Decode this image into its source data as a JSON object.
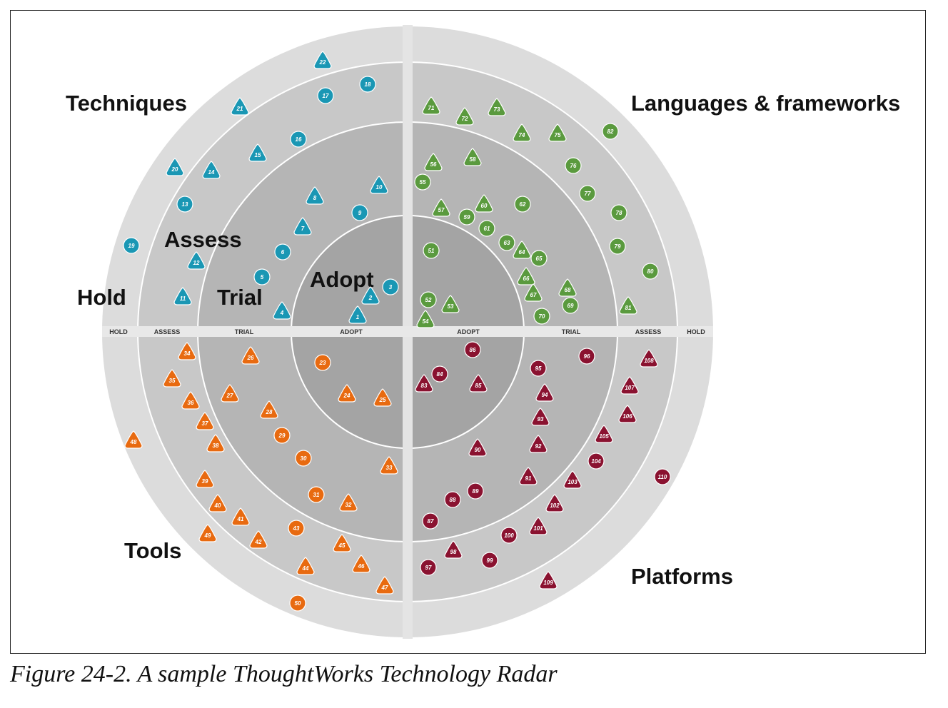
{
  "caption": "Figure 24-2. A sample ThoughtWorks Technology Radar",
  "quadrants": {
    "techniques": "Techniques",
    "languages": "Languages & frameworks",
    "tools": "Tools",
    "platforms": "Platforms"
  },
  "ring_labels": {
    "hold": "Hold",
    "assess": "Assess",
    "trial": "Trial",
    "adopt": "Adopt"
  },
  "axis_labels": [
    "HOLD",
    "ASSESS",
    "TRIAL",
    "ADOPT",
    "ADOPT",
    "TRIAL",
    "ASSESS",
    "HOLD"
  ],
  "colors": {
    "techniques": "#1a97b4",
    "languages": "#5a9a3e",
    "tools": "#e86a10",
    "platforms": "#8a1230",
    "ring_hold": "#dcdcdc",
    "ring_assess": "#c8c8c8",
    "ring_trial": "#b5b5b5",
    "ring_adopt": "#a4a4a4"
  },
  "blips": [
    {
      "n": "1",
      "q": "techniques",
      "shape": "triangle"
    },
    {
      "n": "2",
      "q": "techniques",
      "shape": "triangle"
    },
    {
      "n": "3",
      "q": "techniques",
      "shape": "circle"
    },
    {
      "n": "4",
      "q": "techniques",
      "shape": "triangle"
    },
    {
      "n": "5",
      "q": "techniques",
      "shape": "circle"
    },
    {
      "n": "6",
      "q": "techniques",
      "shape": "circle"
    },
    {
      "n": "7",
      "q": "techniques",
      "shape": "triangle"
    },
    {
      "n": "8",
      "q": "techniques",
      "shape": "triangle"
    },
    {
      "n": "9",
      "q": "techniques",
      "shape": "circle"
    },
    {
      "n": "10",
      "q": "techniques",
      "shape": "triangle"
    },
    {
      "n": "11",
      "q": "techniques",
      "shape": "triangle"
    },
    {
      "n": "12",
      "q": "techniques",
      "shape": "triangle"
    },
    {
      "n": "13",
      "q": "techniques",
      "shape": "circle"
    },
    {
      "n": "14",
      "q": "techniques",
      "shape": "triangle"
    },
    {
      "n": "15",
      "q": "techniques",
      "shape": "triangle"
    },
    {
      "n": "16",
      "q": "techniques",
      "shape": "circle"
    },
    {
      "n": "17",
      "q": "techniques",
      "shape": "circle"
    },
    {
      "n": "18",
      "q": "techniques",
      "shape": "circle"
    },
    {
      "n": "19",
      "q": "techniques",
      "shape": "circle"
    },
    {
      "n": "20",
      "q": "techniques",
      "shape": "triangle"
    },
    {
      "n": "21",
      "q": "techniques",
      "shape": "triangle"
    },
    {
      "n": "22",
      "q": "techniques",
      "shape": "triangle"
    },
    {
      "n": "51",
      "q": "languages",
      "shape": "circle"
    },
    {
      "n": "52",
      "q": "languages",
      "shape": "circle"
    },
    {
      "n": "53",
      "q": "languages",
      "shape": "triangle"
    },
    {
      "n": "54",
      "q": "languages",
      "shape": "triangle"
    },
    {
      "n": "55",
      "q": "languages",
      "shape": "circle"
    },
    {
      "n": "56",
      "q": "languages",
      "shape": "triangle"
    },
    {
      "n": "57",
      "q": "languages",
      "shape": "triangle"
    },
    {
      "n": "58",
      "q": "languages",
      "shape": "triangle"
    },
    {
      "n": "59",
      "q": "languages",
      "shape": "circle"
    },
    {
      "n": "60",
      "q": "languages",
      "shape": "triangle"
    },
    {
      "n": "61",
      "q": "languages",
      "shape": "circle"
    },
    {
      "n": "62",
      "q": "languages",
      "shape": "circle"
    },
    {
      "n": "63",
      "q": "languages",
      "shape": "circle"
    },
    {
      "n": "64",
      "q": "languages",
      "shape": "triangle"
    },
    {
      "n": "65",
      "q": "languages",
      "shape": "circle"
    },
    {
      "n": "66",
      "q": "languages",
      "shape": "triangle"
    },
    {
      "n": "67",
      "q": "languages",
      "shape": "triangle"
    },
    {
      "n": "68",
      "q": "languages",
      "shape": "triangle"
    },
    {
      "n": "69",
      "q": "languages",
      "shape": "circle"
    },
    {
      "n": "70",
      "q": "languages",
      "shape": "circle"
    },
    {
      "n": "71",
      "q": "languages",
      "shape": "triangle"
    },
    {
      "n": "72",
      "q": "languages",
      "shape": "triangle"
    },
    {
      "n": "73",
      "q": "languages",
      "shape": "triangle"
    },
    {
      "n": "74",
      "q": "languages",
      "shape": "triangle"
    },
    {
      "n": "75",
      "q": "languages",
      "shape": "triangle"
    },
    {
      "n": "76",
      "q": "languages",
      "shape": "circle"
    },
    {
      "n": "77",
      "q": "languages",
      "shape": "circle"
    },
    {
      "n": "78",
      "q": "languages",
      "shape": "circle"
    },
    {
      "n": "79",
      "q": "languages",
      "shape": "circle"
    },
    {
      "n": "80",
      "q": "languages",
      "shape": "circle"
    },
    {
      "n": "81",
      "q": "languages",
      "shape": "triangle"
    },
    {
      "n": "82",
      "q": "languages",
      "shape": "circle"
    },
    {
      "n": "23",
      "q": "tools",
      "shape": "circle"
    },
    {
      "n": "24",
      "q": "tools",
      "shape": "triangle"
    },
    {
      "n": "25",
      "q": "tools",
      "shape": "triangle"
    },
    {
      "n": "26",
      "q": "tools",
      "shape": "triangle"
    },
    {
      "n": "27",
      "q": "tools",
      "shape": "triangle"
    },
    {
      "n": "28",
      "q": "tools",
      "shape": "triangle"
    },
    {
      "n": "29",
      "q": "tools",
      "shape": "circle"
    },
    {
      "n": "30",
      "q": "tools",
      "shape": "circle"
    },
    {
      "n": "31",
      "q": "tools",
      "shape": "circle"
    },
    {
      "n": "32",
      "q": "tools",
      "shape": "triangle"
    },
    {
      "n": "33",
      "q": "tools",
      "shape": "triangle"
    },
    {
      "n": "34",
      "q": "tools",
      "shape": "triangle"
    },
    {
      "n": "35",
      "q": "tools",
      "shape": "triangle"
    },
    {
      "n": "36",
      "q": "tools",
      "shape": "triangle"
    },
    {
      "n": "37",
      "q": "tools",
      "shape": "triangle"
    },
    {
      "n": "38",
      "q": "tools",
      "shape": "triangle"
    },
    {
      "n": "39",
      "q": "tools",
      "shape": "triangle"
    },
    {
      "n": "40",
      "q": "tools",
      "shape": "triangle"
    },
    {
      "n": "41",
      "q": "tools",
      "shape": "triangle"
    },
    {
      "n": "42",
      "q": "tools",
      "shape": "triangle"
    },
    {
      "n": "43",
      "q": "tools",
      "shape": "circle"
    },
    {
      "n": "44",
      "q": "tools",
      "shape": "triangle"
    },
    {
      "n": "45",
      "q": "tools",
      "shape": "triangle"
    },
    {
      "n": "46",
      "q": "tools",
      "shape": "triangle"
    },
    {
      "n": "47",
      "q": "tools",
      "shape": "triangle"
    },
    {
      "n": "48",
      "q": "tools",
      "shape": "triangle"
    },
    {
      "n": "49",
      "q": "tools",
      "shape": "triangle"
    },
    {
      "n": "50",
      "q": "tools",
      "shape": "circle"
    },
    {
      "n": "83",
      "q": "platforms",
      "shape": "triangle"
    },
    {
      "n": "84",
      "q": "platforms",
      "shape": "circle"
    },
    {
      "n": "85",
      "q": "platforms",
      "shape": "triangle"
    },
    {
      "n": "86",
      "q": "platforms",
      "shape": "circle"
    },
    {
      "n": "87",
      "q": "platforms",
      "shape": "circle"
    },
    {
      "n": "88",
      "q": "platforms",
      "shape": "circle"
    },
    {
      "n": "89",
      "q": "platforms",
      "shape": "circle"
    },
    {
      "n": "90",
      "q": "platforms",
      "shape": "triangle"
    },
    {
      "n": "91",
      "q": "platforms",
      "shape": "triangle"
    },
    {
      "n": "92",
      "q": "platforms",
      "shape": "triangle"
    },
    {
      "n": "93",
      "q": "platforms",
      "shape": "triangle"
    },
    {
      "n": "94",
      "q": "platforms",
      "shape": "triangle"
    },
    {
      "n": "95",
      "q": "platforms",
      "shape": "circle"
    },
    {
      "n": "96",
      "q": "platforms",
      "shape": "circle"
    },
    {
      "n": "97",
      "q": "platforms",
      "shape": "circle"
    },
    {
      "n": "98",
      "q": "platforms",
      "shape": "triangle"
    },
    {
      "n": "99",
      "q": "platforms",
      "shape": "circle"
    },
    {
      "n": "100",
      "q": "platforms",
      "shape": "circle"
    },
    {
      "n": "101",
      "q": "platforms",
      "shape": "triangle"
    },
    {
      "n": "102",
      "q": "platforms",
      "shape": "triangle"
    },
    {
      "n": "103",
      "q": "platforms",
      "shape": "triangle"
    },
    {
      "n": "104",
      "q": "platforms",
      "shape": "circle"
    },
    {
      "n": "105",
      "q": "platforms",
      "shape": "triangle"
    },
    {
      "n": "106",
      "q": "platforms",
      "shape": "triangle"
    },
    {
      "n": "107",
      "q": "platforms",
      "shape": "triangle"
    },
    {
      "n": "108",
      "q": "platforms",
      "shape": "triangle"
    },
    {
      "n": "109",
      "q": "platforms",
      "shape": "triangle"
    },
    {
      "n": "110",
      "q": "platforms",
      "shape": "circle"
    }
  ]
}
